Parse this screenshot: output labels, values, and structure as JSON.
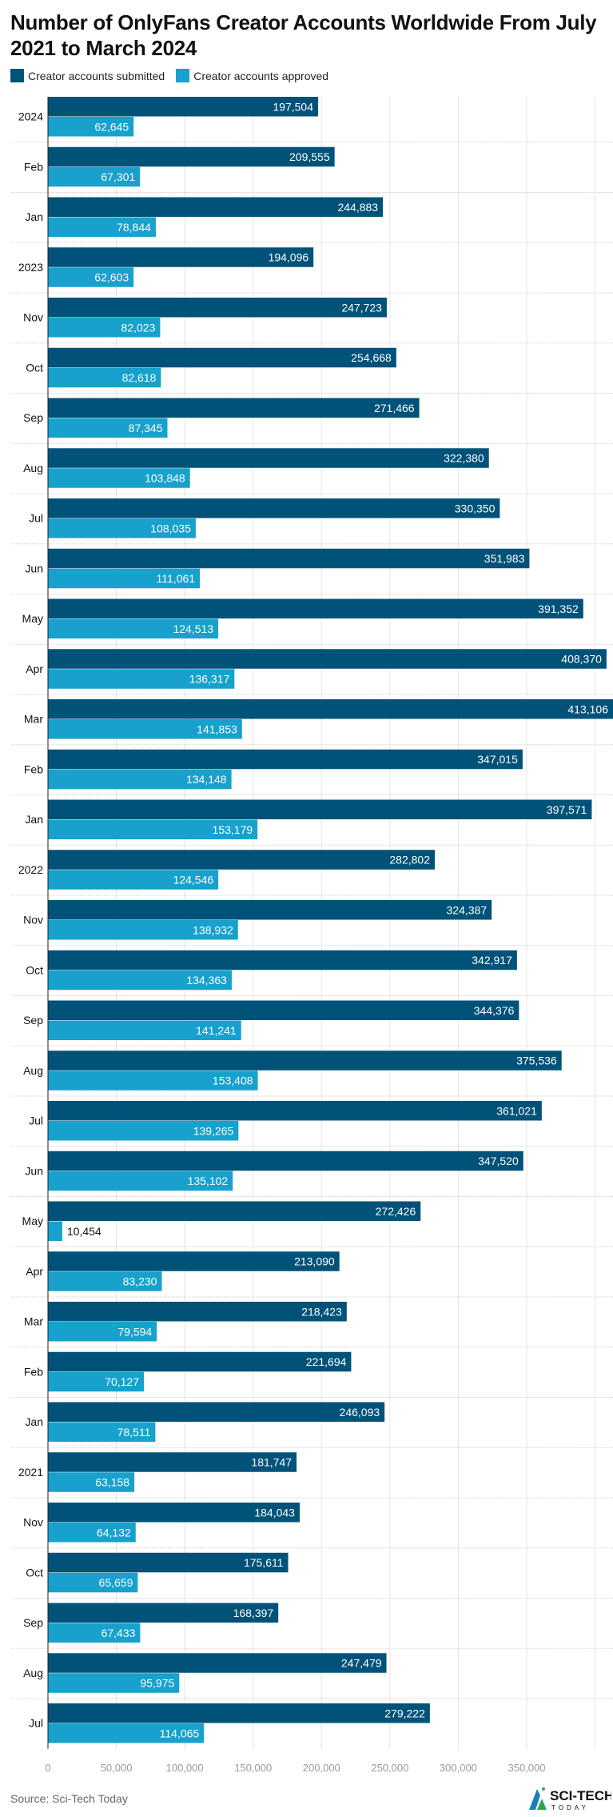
{
  "chart_data": {
    "type": "bar",
    "orientation": "horizontal",
    "title": "Number of OnlyFans Creator Accounts Worldwide From July 2021 to March 2024",
    "categories": [
      "2024",
      "Feb",
      "Jan",
      "2023",
      "Nov",
      "Oct",
      "Sep",
      "Aug",
      "Jul",
      "Jun",
      "May",
      "Apr",
      "Mar",
      "Feb",
      "Jan",
      "2022",
      "Nov",
      "Oct",
      "Sep",
      "Aug",
      "Jul",
      "Jun",
      "May",
      "Apr",
      "Mar",
      "Feb",
      "Jan",
      "2021",
      "Nov",
      "Oct",
      "Sep",
      "Aug",
      "Jul"
    ],
    "series": [
      {
        "name": "Creator accounts submitted",
        "color": "#005279",
        "values": [
          197504,
          209555,
          244883,
          194096,
          247723,
          254668,
          271466,
          322380,
          330350,
          351983,
          391352,
          408370,
          413106,
          347015,
          397571,
          282802,
          324387,
          342917,
          344376,
          375536,
          361021,
          347520,
          272426,
          213090,
          218423,
          221694,
          246093,
          181747,
          184043,
          175611,
          168397,
          247479,
          279222
        ],
        "labels": [
          "197,504",
          "209,555",
          "244,883",
          "194,096",
          "247,723",
          "254,668",
          "271,466",
          "322,380",
          "330,350",
          "351,983",
          "391,352",
          "408,370",
          "413,106",
          "347,015",
          "397,571",
          "282,802",
          "324,387",
          "342,917",
          "344,376",
          "375,536",
          "361,021",
          "347,520",
          "272,426",
          "213,090",
          "218,423",
          "221,694",
          "246,093",
          "181,747",
          "184,043",
          "175,611",
          "168,397",
          "247,479",
          "279,222"
        ]
      },
      {
        "name": "Creator accounts approved",
        "color": "#18a1cd",
        "values": [
          62645,
          67301,
          78844,
          62603,
          82023,
          82618,
          87345,
          103848,
          108035,
          111061,
          124513,
          136317,
          141853,
          134148,
          153179,
          124546,
          138932,
          134363,
          141241,
          153408,
          139265,
          135102,
          10454,
          83230,
          79594,
          70127,
          78511,
          63158,
          64132,
          65659,
          67433,
          95975,
          114065
        ],
        "labels": [
          "62,645",
          "67,301",
          "78,844",
          "62,603",
          "82,023",
          "82,618",
          "87,345",
          "103,848",
          "108,035",
          "111,061",
          "124,513",
          "136,317",
          "141,853",
          "134,148",
          "153,179",
          "124,546",
          "138,932",
          "134,363",
          "141,241",
          "153,408",
          "139,265",
          "135,102",
          "10,454",
          "83,230",
          "79,594",
          "70,127",
          "78,511",
          "63,158",
          "64,132",
          "65,659",
          "67,433",
          "95,975",
          "114,065"
        ]
      }
    ],
    "xlim": [
      0,
      413106
    ],
    "xticks": [
      0,
      50000,
      100000,
      150000,
      200000,
      250000,
      300000,
      350000
    ],
    "xtick_labels": [
      "0",
      "50,000",
      "100,000",
      "150,000",
      "200,000",
      "250,000",
      "300,000",
      "350,000"
    ],
    "grid": true,
    "legend_position": "top-left"
  },
  "source": "Source: Sci-Tech Today",
  "logo": {
    "text": "SCI-TECH TODAY"
  }
}
